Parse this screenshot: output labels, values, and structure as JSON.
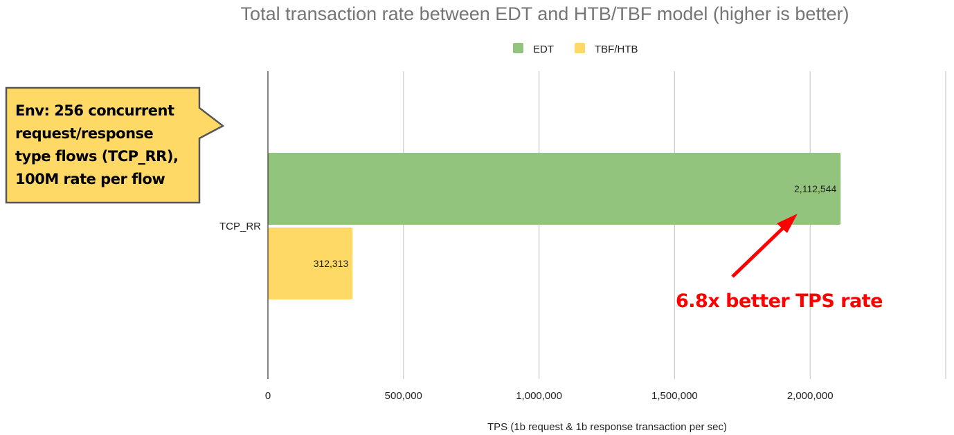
{
  "chart_data": {
    "type": "bar",
    "orientation": "horizontal",
    "title": "Total transaction rate between EDT and HTB/TBF model (higher is better)",
    "categories": [
      "TCP_RR"
    ],
    "series": [
      {
        "name": "EDT",
        "values": [
          2112544
        ],
        "color": "#93c47d",
        "labels": [
          "2,112,544"
        ]
      },
      {
        "name": "TBF/HTB",
        "values": [
          312313
        ],
        "color": "#ffd966",
        "labels": [
          "312,313"
        ]
      }
    ],
    "xlabel": "TPS (1b request & 1b response transaction per sec)",
    "ylabel": "",
    "xlim": [
      0,
      2500000
    ],
    "xticks": [
      0,
      500000,
      1000000,
      1500000,
      2000000,
      2500000
    ],
    "xtick_labels": [
      "0",
      "500,000",
      "1,000,000",
      "1,500,000",
      "2,000,000",
      ""
    ],
    "grid": true,
    "legend": "top-center"
  },
  "callout": {
    "text": "Env: 256 concurrent request/response type flows (TCP_RR), 100M rate per flow",
    "color": "#ffd966"
  },
  "annotation": {
    "text": "6.8x better TPS rate",
    "color": "#ff0000"
  }
}
